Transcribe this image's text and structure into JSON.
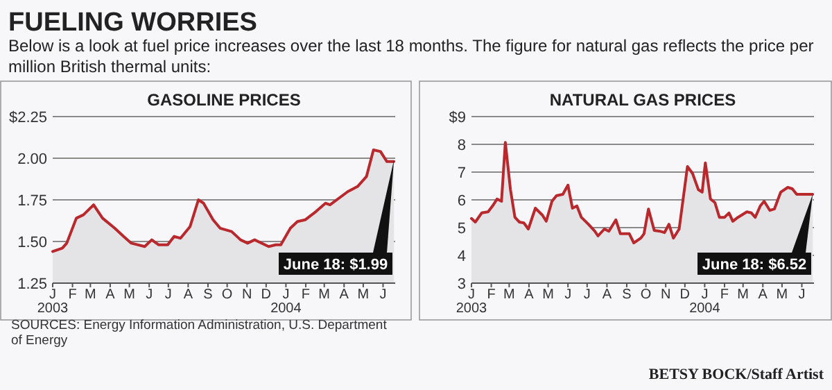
{
  "chart_data": [
    {
      "type": "other",
      "title": "FUELING WORRIES",
      "subtitle": "Below is a look at fuel price increases over the last 18 months. The figure for natural gas reflects the price per\nmillion British thermal units:",
      "annotations": [
        "BETSY BOCK/Staff Artist"
      ]
    },
    {
      "type": "area",
      "title": "GASOLINE PRICES",
      "x": [
        "2003-01-01",
        "2003-01-16",
        "2003-01-23",
        "2003-02-07",
        "2003-02-18",
        "2003-03-06",
        "2003-03-20",
        "2003-04-08",
        "2003-04-22",
        "2003-05-04",
        "2003-05-25",
        "2003-06-05",
        "2003-06-16",
        "2003-06-30",
        "2003-07-10",
        "2003-07-20",
        "2003-08-04",
        "2003-08-17",
        "2003-08-25",
        "2003-09-09",
        "2003-09-20",
        "2003-10-08",
        "2003-10-22",
        "2003-11-02",
        "2003-11-13",
        "2003-12-05",
        "2003-12-16",
        "2003-12-24",
        "2004-01-08",
        "2004-01-19",
        "2004-01-31",
        "2004-02-17",
        "2004-03-03",
        "2004-03-10",
        "2004-04-07",
        "2004-04-22",
        "2004-05-06",
        "2004-05-17",
        "2004-05-28",
        "2004-06-07",
        "2004-06-18"
      ],
      "series": [
        {
          "color": "#b8282c",
          "values": [
            1.44,
            1.46,
            1.49,
            1.64,
            1.66,
            1.72,
            1.64,
            1.58,
            1.53,
            1.49,
            1.47,
            1.51,
            1.48,
            1.48,
            1.53,
            1.52,
            1.59,
            1.75,
            1.73,
            1.63,
            1.58,
            1.56,
            1.51,
            1.49,
            1.51,
            1.47,
            1.48,
            1.48,
            1.58,
            1.62,
            1.63,
            1.68,
            1.73,
            1.72,
            1.8,
            1.83,
            1.89,
            2.05,
            2.04,
            1.98,
            1.98
          ]
        }
      ],
      "xlim": [
        "2003-01-01",
        "2004-06-20"
      ],
      "xticks": [
        {
          "value": "2003-01",
          "label": "J\n2003"
        },
        {
          "value": "2003-02",
          "label": "F"
        },
        {
          "value": "2003-03",
          "label": "M"
        },
        {
          "value": "2003-04",
          "label": "A"
        },
        {
          "value": "2003-05",
          "label": "M"
        },
        {
          "value": "2003-06",
          "label": "J"
        },
        {
          "value": "2003-07",
          "label": "J"
        },
        {
          "value": "2003-08",
          "label": "A"
        },
        {
          "value": "2003-09",
          "label": "S"
        },
        {
          "value": "2003-10",
          "label": "O"
        },
        {
          "value": "2003-11",
          "label": "N"
        },
        {
          "value": "2003-12",
          "label": "D"
        },
        {
          "value": "2004-01",
          "label": "J\n2004"
        },
        {
          "value": "2004-02",
          "label": "F"
        },
        {
          "value": "2004-03",
          "label": "M"
        },
        {
          "value": "2004-04",
          "label": "A"
        },
        {
          "value": "2004-05",
          "label": "M"
        },
        {
          "value": "2004-06",
          "label": "J"
        }
      ],
      "ylim": [
        1.25,
        2.25
      ],
      "yticks": [
        1.25,
        {
          "value": 1.5,
          "label": "1.50"
        },
        1.75,
        {
          "value": 2,
          "label": "2.00"
        },
        {
          "value": 2.25,
          "label": "$2.25"
        }
      ],
      "grid": "y",
      "annotations": [
        {
          "text": "June 18: $1.99",
          "x": "2004-06-18",
          "y": 1.99
        },
        "SOURCES: Energy Information Administration, U.S. Department\nof Energy"
      ]
    },
    {
      "type": "area",
      "title": "NATURAL GAS PRICES",
      "x": [
        "2003-01-01",
        "2003-01-07",
        "2003-01-17",
        "2003-01-27",
        "2003-02-03",
        "2003-02-10",
        "2003-02-17",
        "2003-02-23",
        "2003-03-03",
        "2003-03-10",
        "2003-03-17",
        "2003-03-24",
        "2003-03-31",
        "2003-04-11",
        "2003-04-22",
        "2003-04-28",
        "2003-05-07",
        "2003-05-14",
        "2003-05-24",
        "2003-06-01",
        "2003-06-08",
        "2003-06-15",
        "2003-06-22",
        "2003-07-03",
        "2003-07-13",
        "2003-07-18",
        "2003-07-28",
        "2003-08-04",
        "2003-08-15",
        "2003-08-22",
        "2003-09-05",
        "2003-09-12",
        "2003-09-23",
        "2003-09-28",
        "2003-10-05",
        "2003-10-14",
        "2003-10-23",
        "2003-10-30",
        "2003-11-06",
        "2003-11-13",
        "2003-11-22",
        "2003-12-05",
        "2003-12-13",
        "2003-12-22",
        "2003-12-28",
        "2004-01-02",
        "2004-01-10",
        "2004-01-17",
        "2004-01-24",
        "2004-02-01",
        "2004-02-08",
        "2004-02-14",
        "2004-02-22",
        "2004-03-07",
        "2004-03-14",
        "2004-03-20",
        "2004-03-28",
        "2004-04-03",
        "2004-04-12",
        "2004-04-19",
        "2004-04-29",
        "2004-05-10",
        "2004-05-17",
        "2004-05-24",
        "2004-06-18"
      ],
      "series": [
        {
          "color": "#b8282c",
          "values": [
            5.33,
            5.2,
            5.53,
            5.57,
            5.78,
            6.03,
            5.95,
            8.07,
            6.37,
            5.37,
            5.2,
            5.17,
            4.95,
            5.7,
            5.45,
            5.23,
            5.95,
            6.15,
            6.2,
            6.53,
            5.7,
            5.78,
            5.37,
            5.12,
            4.87,
            4.7,
            4.95,
            4.87,
            5.28,
            4.78,
            4.78,
            4.45,
            4.62,
            4.78,
            5.67,
            4.9,
            4.87,
            4.82,
            5.12,
            4.62,
            4.95,
            7.2,
            6.95,
            6.37,
            6.28,
            7.33,
            6.03,
            5.9,
            5.37,
            5.37,
            5.53,
            5.23,
            5.37,
            5.57,
            5.53,
            5.37,
            5.78,
            5.95,
            5.62,
            5.67,
            6.28,
            6.45,
            6.4,
            6.2,
            6.2
          ]
        }
      ],
      "xlim": [
        "2003-01-01",
        "2004-06-20"
      ],
      "xticks": [
        {
          "value": "2003-01",
          "label": "J\n2003"
        },
        {
          "value": "2003-02",
          "label": "F"
        },
        {
          "value": "2003-03",
          "label": "M"
        },
        {
          "value": "2003-04",
          "label": "A"
        },
        {
          "value": "2003-05",
          "label": "M"
        },
        {
          "value": "2003-06",
          "label": "J"
        },
        {
          "value": "2003-07",
          "label": "J"
        },
        {
          "value": "2003-08",
          "label": "A"
        },
        {
          "value": "2003-09",
          "label": "S"
        },
        {
          "value": "2003-10",
          "label": "O"
        },
        {
          "value": "2003-11",
          "label": "N"
        },
        {
          "value": "2003-12",
          "label": "D"
        },
        {
          "value": "2004-01",
          "label": "J\n2004"
        },
        {
          "value": "2004-02",
          "label": "F"
        },
        {
          "value": "2004-03",
          "label": "M"
        },
        {
          "value": "2004-04",
          "label": "A"
        },
        {
          "value": "2004-05",
          "label": "M"
        },
        {
          "value": "2004-06",
          "label": "J"
        }
      ],
      "ylim": [
        3,
        9
      ],
      "yticks": [
        3,
        4,
        5,
        6,
        7,
        8,
        {
          "value": 9,
          "label": "$9"
        }
      ],
      "grid": "y",
      "annotations": [
        {
          "text": "June 18: $6.52",
          "x": "2004-06-18",
          "y": 6.2
        }
      ]
    }
  ]
}
